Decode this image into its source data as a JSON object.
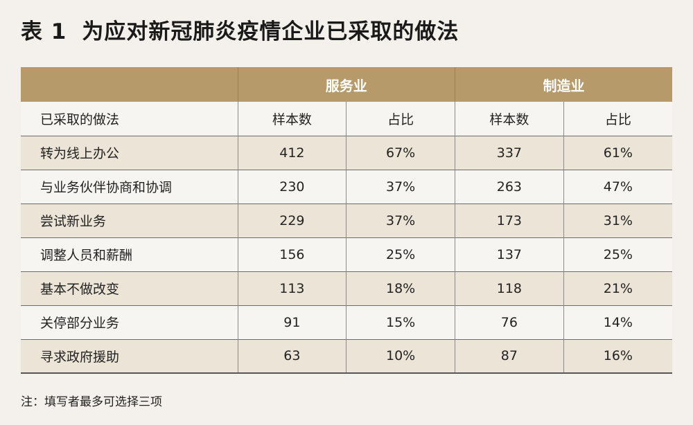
{
  "title": {
    "label": "表 1",
    "text": "为应对新冠肺炎疫情企业已采取的做法"
  },
  "table": {
    "groups": [
      "服务业",
      "制造业"
    ],
    "columns": [
      "已采取的做法",
      "样本数",
      "占比",
      "样本数",
      "占比"
    ],
    "rows": [
      [
        "转为线上办公",
        "412",
        "67%",
        "337",
        "61%"
      ],
      [
        "与业务伙伴协商和协调",
        "230",
        "37%",
        "263",
        "47%"
      ],
      [
        "尝试新业务",
        "229",
        "37%",
        "173",
        "31%"
      ],
      [
        "调整人员和薪酬",
        "156",
        "25%",
        "137",
        "25%"
      ],
      [
        "基本不做改变",
        "113",
        "18%",
        "118",
        "21%"
      ],
      [
        "关停部分业务",
        "91",
        "15%",
        "76",
        "14%"
      ],
      [
        "寻求政府援助",
        "63",
        "10%",
        "87",
        "16%"
      ]
    ]
  },
  "note": "注：填写者最多可选择三项",
  "colors": {
    "header_bg": "#b79a6a",
    "header_text": "#ffffff",
    "row_alt_bg": "#ebe4d7",
    "page_bg": "#f4f1ec"
  }
}
